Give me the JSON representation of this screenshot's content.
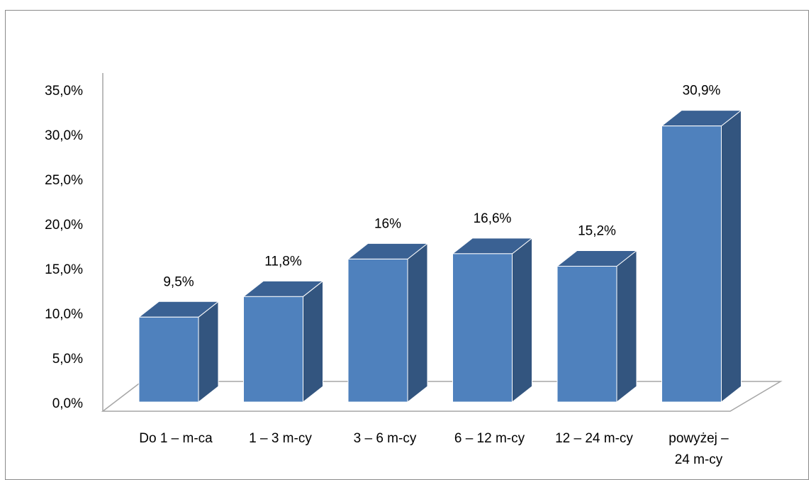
{
  "chart_data": {
    "type": "bar",
    "style": "3d-column",
    "title": "",
    "xlabel": "",
    "ylabel": "",
    "ylim": [
      0,
      35
    ],
    "yticks": [
      "0,0%",
      "5,0%",
      "10,0%",
      "15,0%",
      "20,0%",
      "25,0%",
      "30,0%",
      "35,0%"
    ],
    "categories": [
      [
        "Do 1 – m-ca"
      ],
      [
        "1 – 3 m-cy"
      ],
      [
        "3 – 6 m-cy"
      ],
      [
        "6 – 12 m-cy"
      ],
      [
        "12 – 24 m-cy"
      ],
      [
        "powyżej –",
        "24 m-cy"
      ]
    ],
    "values": [
      9.5,
      11.8,
      16,
      16.6,
      15.2,
      30.9
    ],
    "data_labels": [
      "9,5%",
      "11,8%",
      "16%",
      "16,6%",
      "15,2%",
      "30,9%"
    ],
    "grid": false,
    "legend": "none",
    "colors": {
      "bar_front": "#4f81bd",
      "bar_side": "#33557f",
      "bar_top": "#3a6193",
      "axis": "#a6a6a6"
    }
  }
}
